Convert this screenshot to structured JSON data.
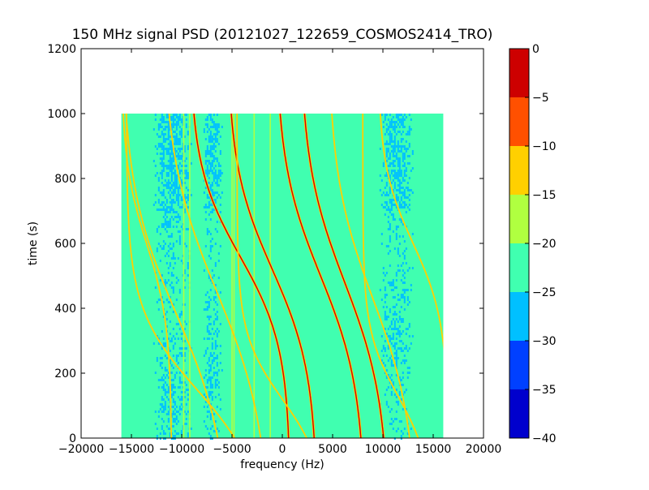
{
  "chart_data": {
    "type": "heatmap",
    "title": "150 MHz signal PSD (20121027_122659_COSMOS2414_TRO)",
    "xlabel": "frequency (Hz)",
    "ylabel": "time (s)",
    "xlim": [
      -20000,
      20000
    ],
    "ylim": [
      0,
      1200
    ],
    "x_ticks": [
      -20000,
      -15000,
      -10000,
      -5000,
      0,
      5000,
      10000,
      15000,
      20000
    ],
    "x_tick_labels": [
      "−20000",
      "−15000",
      "−10000",
      "−5000",
      "0",
      "5000",
      "10000",
      "15000",
      "20000"
    ],
    "y_ticks": [
      0,
      200,
      400,
      600,
      800,
      1000,
      1200
    ],
    "y_tick_labels": [
      "0",
      "200",
      "400",
      "600",
      "800",
      "1000",
      "1200"
    ],
    "data_extent": {
      "x": [
        -16000,
        16000
      ],
      "y": [
        0,
        1000
      ]
    },
    "background_level_range": [
      -25,
      -20
    ],
    "colorbar": {
      "levels": [
        -40,
        -35,
        -30,
        -25,
        -20,
        -15,
        -10,
        -5,
        0
      ],
      "tick_labels": [
        "−40",
        "−35",
        "−30",
        "−25",
        "−20",
        "−15",
        "−10",
        "−5",
        "0"
      ],
      "colors": [
        "#0000cd",
        "#0040ff",
        "#00c0ff",
        "#40ffb0",
        "#b0ff40",
        "#ffd000",
        "#ff5000",
        "#cd0000"
      ]
    },
    "noise_bands": [
      {
        "x_range": [
          -13000,
          -9000
        ],
        "level": -27.5
      },
      {
        "x_range": [
          -8000,
          -6000
        ],
        "level": -27.5
      },
      {
        "x_range": [
          9500,
          13000
        ],
        "level": -27.5
      }
    ],
    "vertical_lines": [
      {
        "x": -9800,
        "level": -17.5
      },
      {
        "x": -9200,
        "level": -17.5
      },
      {
        "x": -5000,
        "level": -17.5
      },
      {
        "x": -4800,
        "level": -17.5
      },
      {
        "x": -2800,
        "level": -17.5
      },
      {
        "x": -1200,
        "level": -17.5
      }
    ],
    "doppler_tracks": [
      {
        "center_freq": -4200,
        "center_time": 560,
        "half_width_freq": 5000,
        "half_width_time": 280,
        "level": -5
      },
      {
        "center_freq": -1000,
        "center_time": 520,
        "half_width_freq": 4500,
        "half_width_time": 320,
        "level": -5
      },
      {
        "center_freq": 3800,
        "center_time": 500,
        "half_width_freq": 4500,
        "half_width_time": 350,
        "level": -5
      },
      {
        "center_freq": 6200,
        "center_time": 480,
        "half_width_freq": 4500,
        "half_width_time": 370,
        "level": -5
      },
      {
        "center_freq": 9000,
        "center_time": 430,
        "half_width_freq": 4500,
        "half_width_time": 380,
        "level": -12.5
      },
      {
        "center_freq": 13000,
        "center_time": 600,
        "half_width_freq": 3500,
        "half_width_time": 240,
        "level": -12.5
      },
      {
        "center_freq": -13500,
        "center_time": 600,
        "half_width_freq": 2500,
        "half_width_time": 250,
        "level": -12.5
      },
      {
        "center_freq": -10500,
        "center_time": 380,
        "half_width_freq": 5500,
        "half_width_time": 400,
        "level": -12.5
      },
      {
        "center_freq": -6500,
        "center_time": 450,
        "half_width_freq": 5500,
        "half_width_time": 420,
        "level": -12.5
      },
      {
        "center_freq": -8500,
        "center_time": 150,
        "half_width_freq": 7000,
        "half_width_time": 250,
        "level": -12.5
      },
      {
        "center_freq": 0,
        "center_time": 120,
        "half_width_freq": 4500,
        "half_width_time": 200,
        "level": -12.5
      },
      {
        "center_freq": 11500,
        "center_time": 130,
        "half_width_freq": 3500,
        "half_width_time": 200,
        "level": -12.5
      }
    ]
  }
}
